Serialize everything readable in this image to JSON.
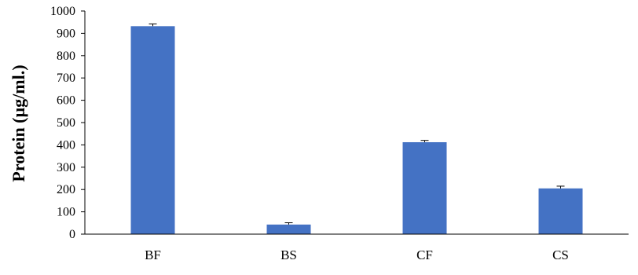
{
  "chart_data": {
    "type": "bar",
    "title": "",
    "xlabel": "",
    "ylabel": "Protein (µg/ml.)",
    "categories": [
      "BF",
      "BS",
      "CF",
      "CS"
    ],
    "series": [
      {
        "values": [
          932,
          43,
          412,
          205
        ],
        "errors": [
          10,
          8,
          8,
          10
        ]
      }
    ],
    "ylim": [
      0,
      1000
    ],
    "yticks": [
      0,
      100,
      200,
      300,
      400,
      500,
      600,
      700,
      800,
      900,
      1000
    ],
    "grid": false,
    "legend": "none",
    "bar_color": "#4472c4",
    "axis_color": "#000000"
  }
}
